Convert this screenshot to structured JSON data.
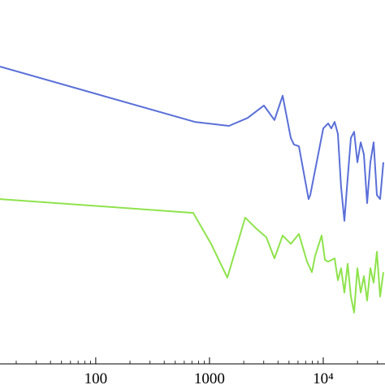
{
  "chart_data": {
    "type": "line",
    "xscale": "log",
    "xlim": [
      14.4,
      34900
    ],
    "ylim": [
      0,
      100
    ],
    "xticks": [
      100,
      1000,
      {
        "value": 10000,
        "label": "10⁴"
      }
    ],
    "series": [
      {
        "color": "#5a6fd8",
        "x": [
          14.4,
          744,
          1484,
          2166,
          3010,
          3727,
          4396,
          5180,
          5530,
          6105,
          7435,
          7690,
          10000,
          11040,
          11780,
          12590,
          13450,
          14350,
          15350,
          16380,
          17500,
          18680,
          19950,
          21330,
          22760,
          24320,
          25960,
          27730,
          29600,
          31620,
          33790
        ],
        "values": [
          81.7,
          66.5,
          65.4,
          67.6,
          71.0,
          67.0,
          73.7,
          62.1,
          60.3,
          59.8,
          45.3,
          46.4,
          64.7,
          66.1,
          64.7,
          66.5,
          63.2,
          48.7,
          39.3,
          50.9,
          62.1,
          63.8,
          55.4,
          60.9,
          57.6,
          44.2,
          55.4,
          60.9,
          46.4,
          45.3,
          55.4
        ]
      },
      {
        "color": "#8ee34c",
        "x": [
          14.4,
          720,
          1033,
          1436,
          2061,
          2596,
          3162,
          3727,
          4396,
          5180,
          6105,
          7197,
          7943,
          8483,
          9677,
          10330,
          11040,
          12590,
          13450,
          14350,
          15350,
          16380,
          17500,
          18680,
          19950,
          21330,
          22760,
          24320,
          25960,
          27730,
          29600,
          31620,
          33790
        ],
        "values": [
          45.3,
          41.5,
          33.0,
          23.7,
          40.2,
          37.1,
          34.8,
          29.0,
          35.3,
          33.0,
          35.7,
          28.1,
          25.2,
          29.7,
          35.3,
          28.6,
          28.1,
          29.0,
          23.0,
          26.3,
          19.6,
          27.5,
          18.5,
          14.1,
          26.3,
          19.6,
          24.1,
          17.4,
          26.3,
          22.3,
          30.8,
          18.5,
          25.2
        ]
      }
    ]
  }
}
